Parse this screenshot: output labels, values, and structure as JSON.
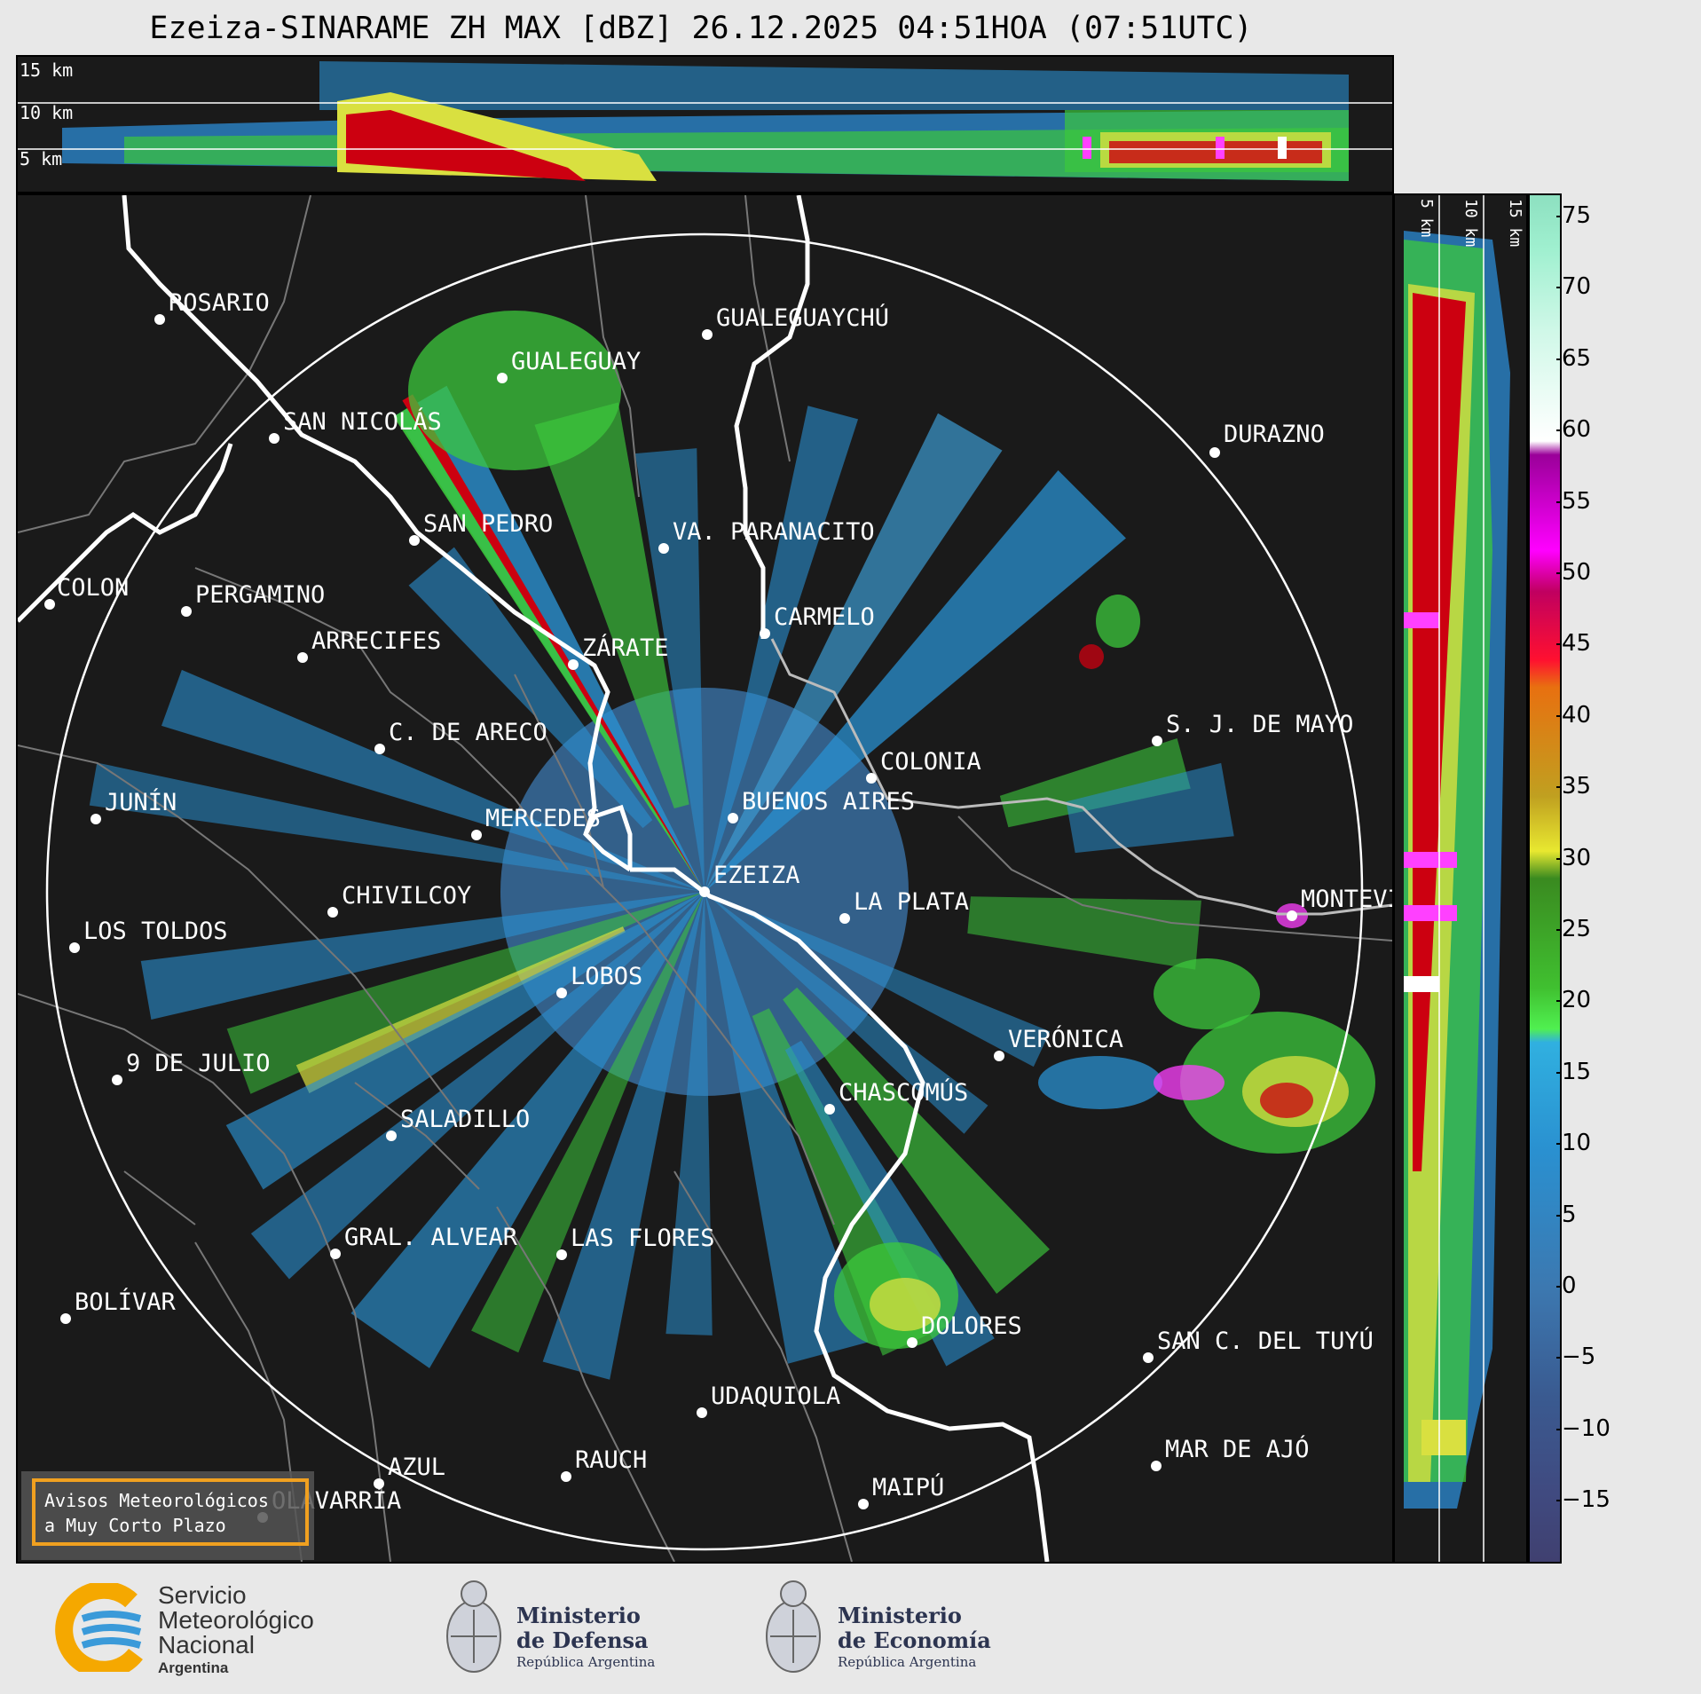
{
  "title": "Ezeiza-SINARAME ZH MAX [dBZ] 26.12.2025 04:51HOA (07:51UTC)",
  "top_panel": {
    "height_labels": [
      "15 km",
      "10 km",
      "5 km"
    ]
  },
  "right_panel": {
    "height_labels": [
      "5 km",
      "10 km",
      "15 km"
    ]
  },
  "colorbar": {
    "ticks": [
      "75",
      "70",
      "65",
      "60",
      "55",
      "50",
      "45",
      "40",
      "35",
      "30",
      "25",
      "20",
      "15",
      "10",
      "5",
      "0",
      "−5",
      "−10",
      "−15"
    ]
  },
  "cities": [
    {
      "name": "ROSARIO"
    },
    {
      "name": "GUALEGUAYCHÚ"
    },
    {
      "name": "GUALEGUAY"
    },
    {
      "name": "SAN NICOLÁS"
    },
    {
      "name": "DURAZNO"
    },
    {
      "name": "SAN PEDRO"
    },
    {
      "name": "VA. PARANACITO"
    },
    {
      "name": "COLON"
    },
    {
      "name": "PERGAMINO"
    },
    {
      "name": "CARMELO"
    },
    {
      "name": "ARRECIFES"
    },
    {
      "name": "ZÁRATE"
    },
    {
      "name": "S. J. DE MAYO"
    },
    {
      "name": "C. DE ARECO"
    },
    {
      "name": "COLONIA"
    },
    {
      "name": "JUNÍN"
    },
    {
      "name": "MERCEDES"
    },
    {
      "name": "BUENOS AIRES"
    },
    {
      "name": "EZEIZA"
    },
    {
      "name": "MONTEVIDEO"
    },
    {
      "name": "CHIVILCOY"
    },
    {
      "name": "LA PLATA"
    },
    {
      "name": "LOS TOLDOS"
    },
    {
      "name": "LOBOS"
    },
    {
      "name": "VERÓNICA"
    },
    {
      "name": "9 DE JULIO"
    },
    {
      "name": "CHASCOMÚS"
    },
    {
      "name": "SALADILLO"
    },
    {
      "name": "GRAL. ALVEAR"
    },
    {
      "name": "LAS FLORES"
    },
    {
      "name": "BOLÍVAR"
    },
    {
      "name": "DOLORES"
    },
    {
      "name": "SAN C. DEL TUYÚ"
    },
    {
      "name": "UDAQUIOLA"
    },
    {
      "name": "MAR DE AJÓ"
    },
    {
      "name": "AZUL"
    },
    {
      "name": "RAUCH"
    },
    {
      "name": "OLAVARRÍA"
    },
    {
      "name": "MAIPÚ"
    }
  ],
  "warning_box": {
    "line1": "Avisos Meteorológicos",
    "line2": "a Muy Corto Plazo"
  },
  "footer": {
    "smn": {
      "line1": "Servicio",
      "line2": "Meteorológico",
      "line3": "Nacional",
      "line4": "Argentina"
    },
    "defensa": {
      "line1": "Ministerio",
      "line2": "de Defensa",
      "line3": "República Argentina"
    },
    "economia": {
      "line1": "Ministerio",
      "line2": "de Economía",
      "line3": "República Argentina"
    }
  }
}
